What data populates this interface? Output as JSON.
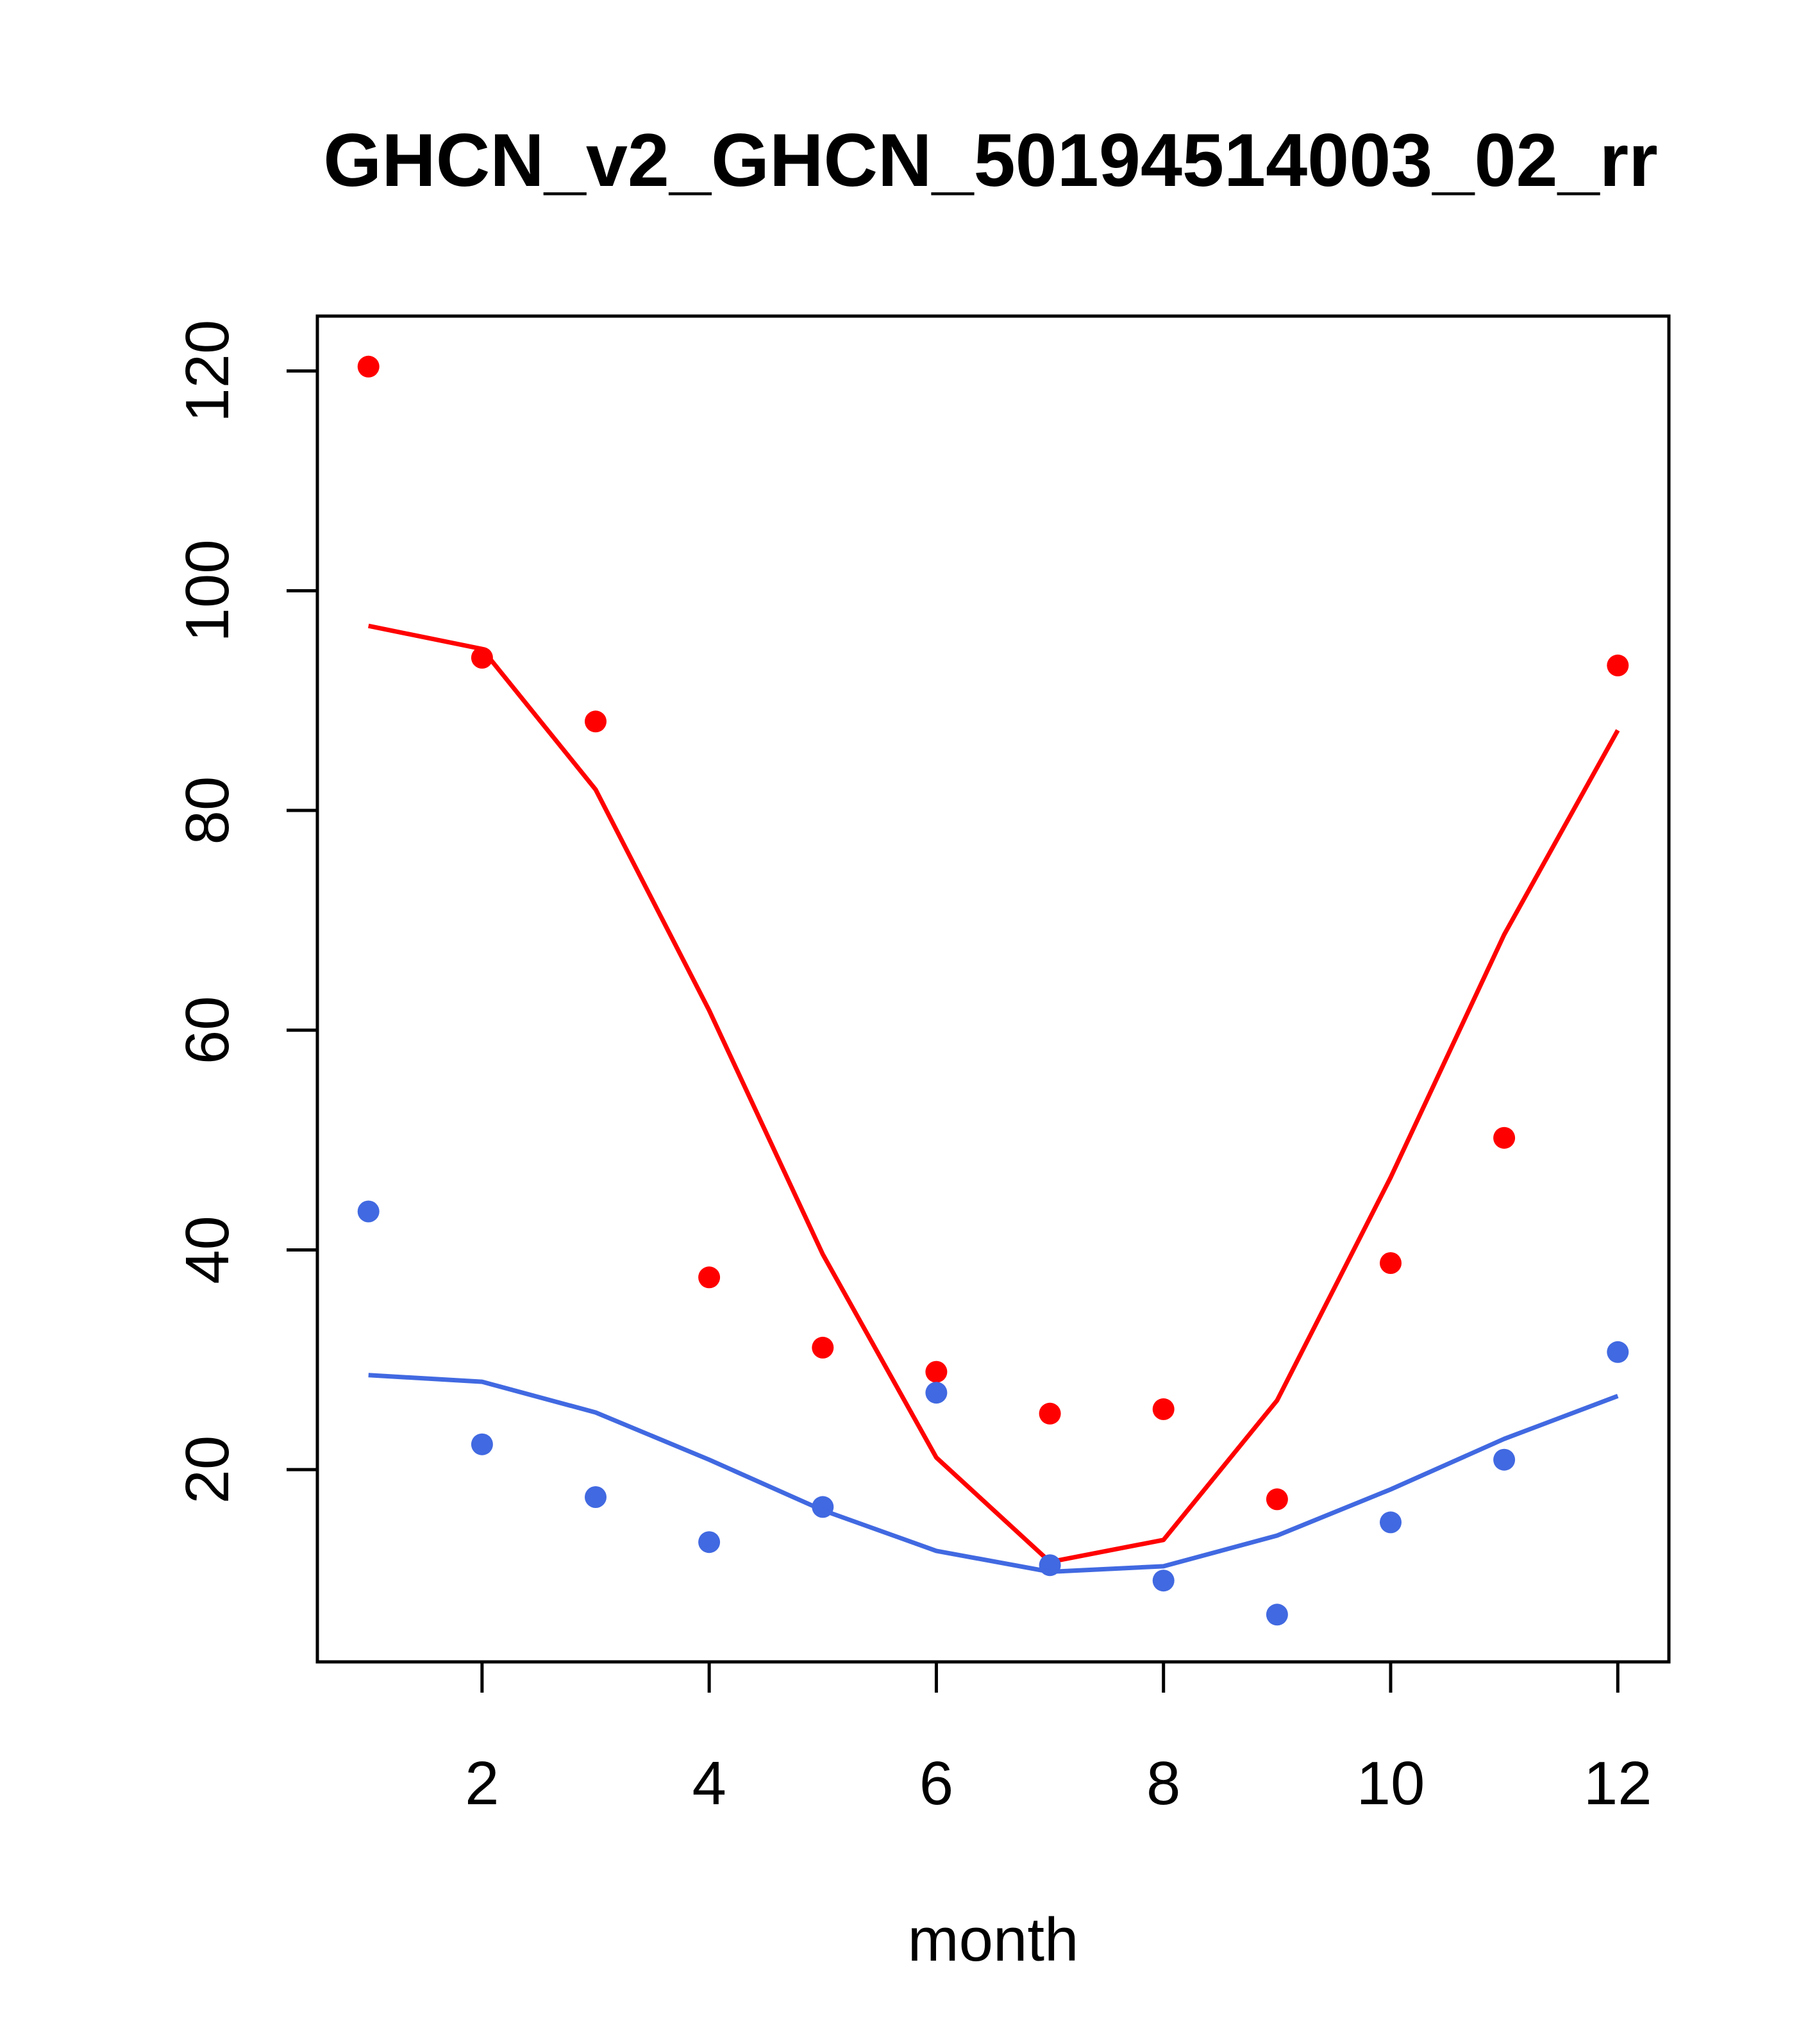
{
  "chart_data": {
    "type": "scatter",
    "title": "GHCN_v2_GHCN_50194514003_02_rr",
    "xlabel": "month",
    "ylabel": "",
    "xlim": [
      0.55,
      12.45
    ],
    "ylim": [
      2.5,
      125
    ],
    "xticks": [
      2,
      4,
      6,
      8,
      10,
      12
    ],
    "yticks": [
      20,
      40,
      60,
      80,
      100,
      120
    ],
    "grid": false,
    "legend": "none",
    "series": [
      {
        "color": "#ff0000",
        "kind": "points",
        "x": [
          1,
          2,
          3,
          4,
          5,
          6,
          7,
          8,
          9,
          10,
          11,
          12
        ],
        "y": [
          120.4,
          93.9,
          88.1,
          37.5,
          31.1,
          28.9,
          25.1,
          25.5,
          17.3,
          38.8,
          50.2,
          93.2
        ]
      },
      {
        "color": "#ff0000",
        "kind": "line",
        "x": [
          1,
          2,
          3,
          4,
          5,
          6,
          7,
          8,
          9,
          10,
          11,
          12
        ],
        "y": [
          96.8,
          94.7,
          81.9,
          61.8,
          39.6,
          21.1,
          11.6,
          13.6,
          26.3,
          46.6,
          68.7,
          87.3
        ]
      },
      {
        "color": "#4169e1",
        "kind": "points",
        "x": [
          1,
          2,
          3,
          4,
          5,
          6,
          7,
          8,
          9,
          10,
          11,
          12
        ],
        "y": [
          43.5,
          22.3,
          17.5,
          13.4,
          16.6,
          27.0,
          11.3,
          9.9,
          6.8,
          15.2,
          20.9,
          30.7
        ]
      },
      {
        "color": "#4169e1",
        "kind": "line",
        "x": [
          1,
          2,
          3,
          4,
          5,
          6,
          7,
          8,
          9,
          10,
          11,
          12
        ],
        "y": [
          28.6,
          28.0,
          25.2,
          20.9,
          16.3,
          12.6,
          10.7,
          11.2,
          14.0,
          18.2,
          22.8,
          26.7
        ]
      }
    ]
  }
}
